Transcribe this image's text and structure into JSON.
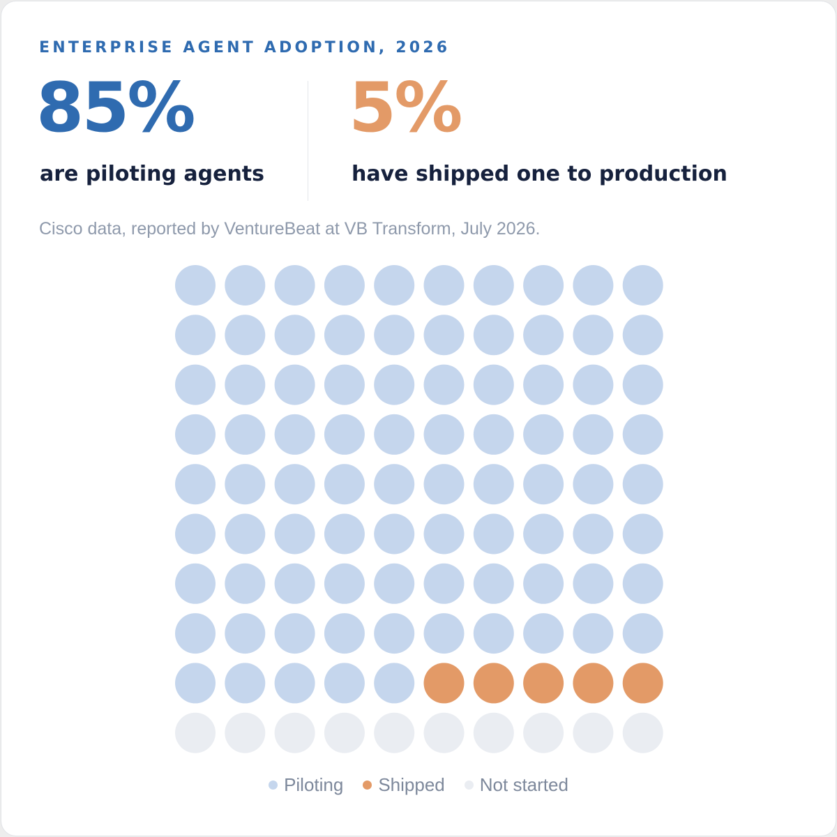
{
  "header": {
    "eyebrow": "ENTERPRISE AGENT ADOPTION, 2026"
  },
  "stats": [
    {
      "value": "85%",
      "label": "are piloting agents",
      "color": "#2f6bb0"
    },
    {
      "value": "5%",
      "label": "have shipped one to production",
      "color": "#e39a67"
    }
  ],
  "source": "Cisco data, reported by VentureBeat at VB Transform, July 2026.",
  "chart_data": {
    "type": "waffle",
    "total": 100,
    "columns": 10,
    "rows": 10,
    "series": [
      {
        "name": "Piloting",
        "value": 85,
        "color": "#c5d6ed"
      },
      {
        "name": "Shipped",
        "value": 5,
        "color": "#e39a67"
      },
      {
        "name": "Not started",
        "value": 10,
        "color": "#eaedf2"
      }
    ]
  },
  "legend": [
    {
      "label": "Piloting",
      "color": "#c5d6ed"
    },
    {
      "label": "Shipped",
      "color": "#e39a67"
    },
    {
      "label": "Not started",
      "color": "#eaedf2"
    }
  ]
}
